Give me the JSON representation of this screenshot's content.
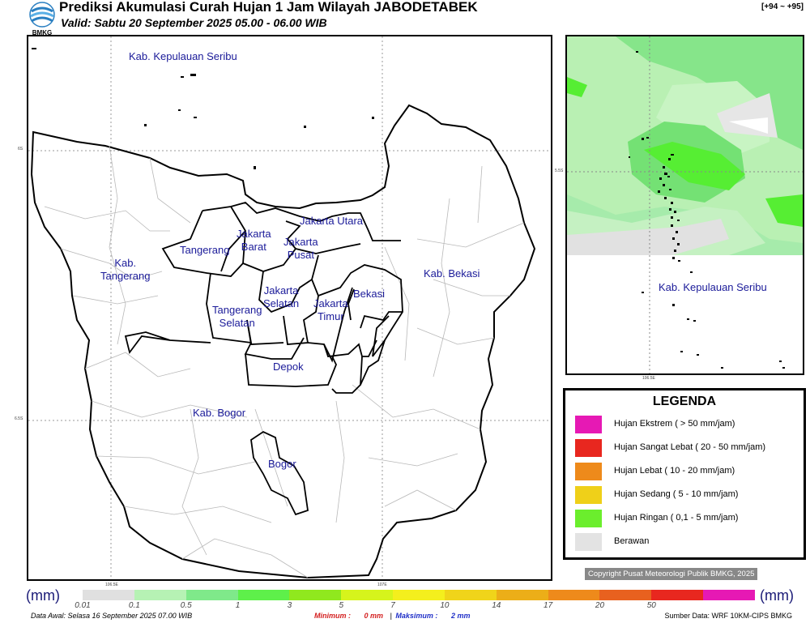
{
  "header": {
    "title": "Prediksi Akumulasi Curah Hujan 1 Jam Wilayah JABODETABEK",
    "valid": "Valid: Sabtu 20 September 2025 05.00 - 06.00 WIB",
    "code": "[+94 ~ +95]",
    "logo_text": "BMKG"
  },
  "main_map": {
    "labels": {
      "kep_seribu": "Kab. Kepulauan Seribu",
      "jakarta_utara": "Jakarta Utara",
      "jakarta_barat": "Jakarta\nBarat",
      "jakarta_pusat": "Jakarta\nPusat",
      "tangerang": "Tangerang",
      "kab_tangerang": "Kab.\nTangerang",
      "jakarta_selatan": "Jakarta\nSelatan",
      "jakarta_timur": "Jakarta\nTimur",
      "bekasi": "Bekasi",
      "kab_bekasi": "Kab. Bekasi",
      "tangerang_selatan": "Tangerang\nSelatan",
      "depok": "Depok",
      "kab_bogor": "Kab. Bogor",
      "bogor": "Bogor"
    },
    "lat_ticks": [
      "6S",
      "6.5S"
    ],
    "lon_ticks": [
      "106.5E",
      "107E"
    ]
  },
  "inset_map": {
    "label": "Kab. Kepulauan Seribu",
    "lat_tick": "5.5S",
    "lon_tick": "106.5E"
  },
  "legend": {
    "title": "LEGENDA",
    "items": [
      {
        "label": "Hujan Ekstrem ( > 50 mm/jam)",
        "color": "#e619b4"
      },
      {
        "label": "Hujan Sangat Lebat ( 20 - 50 mm/jam)",
        "color": "#e8271f"
      },
      {
        "label": "Hujan Lebat ( 10 - 20 mm/jam)",
        "color": "#ee8a1b"
      },
      {
        "label": "Hujan Sedang ( 5 - 10 mm/jam)",
        "color": "#efd019"
      },
      {
        "label": "Hujan Ringan ( 0,1 - 5 mm/jam)",
        "color": "#6bee2d"
      },
      {
        "label": "Berawan",
        "color": "#e3e3e3"
      }
    ]
  },
  "copyright": "Copyright Pusat Meteorologi Publik BMKG, 2025",
  "colorbar": {
    "unit": "(mm)",
    "ticks": [
      "0.01",
      "0.1",
      "0.5",
      "1",
      "3",
      "5",
      "7",
      "10",
      "14",
      "17",
      "20",
      "50"
    ],
    "colors": [
      "#e0e0e0",
      "#b6f2b4",
      "#7fe98a",
      "#5ef04a",
      "#90e81e",
      "#d6f41c",
      "#f4ef1d",
      "#f0d41a",
      "#ecae18",
      "#ee8a1b",
      "#e8611f",
      "#e8271f",
      "#e619b4"
    ]
  },
  "footer": {
    "data_awal": "Data Awal: Selasa 16 September 2025 07.00 WIB",
    "minimum_label": "Minimum :",
    "minimum_value": "0 mm",
    "separator": "|",
    "maximum_label": "Maksimum :",
    "maximum_value": "2 mm",
    "source": "Sumber Data: WRF 10KM-CIPS BMKG"
  }
}
